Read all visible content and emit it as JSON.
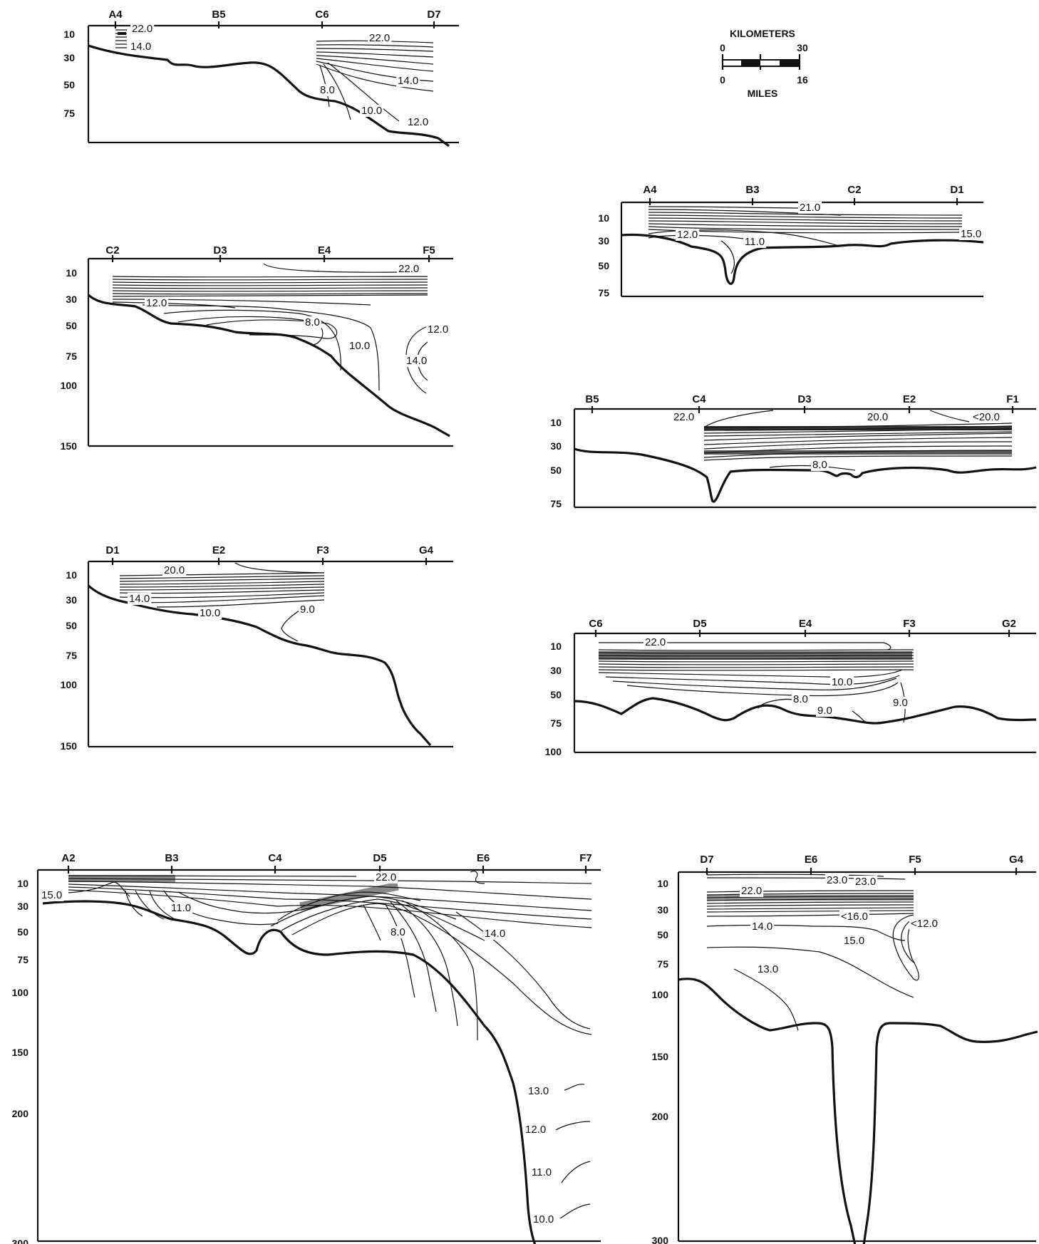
{
  "scale_bar": {
    "km_title": "KILOMETERS",
    "km_ticks": [
      "0",
      "30"
    ],
    "mile_title": "MILES",
    "mile_ticks": [
      "0",
      "16"
    ]
  },
  "transects": [
    {
      "id": "p1",
      "stations": [
        "A4",
        "B5",
        "C6",
        "D7"
      ],
      "depth_ticks": [
        "10",
        "30",
        "50",
        "75"
      ],
      "isotherm_labels": [
        "22.0",
        "14.0",
        "22.0",
        "14.0",
        "8.0",
        "10.0",
        "12.0"
      ]
    },
    {
      "id": "p2",
      "stations": [
        "A4",
        "B3",
        "C2",
        "D1"
      ],
      "depth_ticks": [
        "10",
        "30",
        "50",
        "75"
      ],
      "isotherm_labels": [
        "21.0",
        "12.0",
        "11.0",
        "15.0"
      ]
    },
    {
      "id": "p3",
      "stations": [
        "C2",
        "D3",
        "E4",
        "F5"
      ],
      "depth_ticks": [
        "10",
        "30",
        "50",
        "75",
        "100",
        "150"
      ],
      "isotherm_labels": [
        "22.0",
        "12.0",
        "8.0",
        "10.0",
        "12.0",
        "14.0"
      ]
    },
    {
      "id": "p4",
      "stations": [
        "B5",
        "C4",
        "D3",
        "E2",
        "F1"
      ],
      "depth_ticks": [
        "10",
        "30",
        "50",
        "75"
      ],
      "isotherm_labels": [
        "22.0",
        "20.0",
        "<20.0",
        "8.0"
      ]
    },
    {
      "id": "p5",
      "stations": [
        "D1",
        "E2",
        "F3",
        "G4"
      ],
      "depth_ticks": [
        "10",
        "30",
        "50",
        "75",
        "100",
        "150"
      ],
      "isotherm_labels": [
        "20.0",
        "14.0",
        "10.0",
        "9.0"
      ]
    },
    {
      "id": "p6",
      "stations": [
        "C6",
        "D5",
        "E4",
        "F3",
        "G2"
      ],
      "depth_ticks": [
        "10",
        "30",
        "50",
        "75",
        "100"
      ],
      "isotherm_labels": [
        "22.0",
        "10.0",
        "8.0",
        "9.0",
        "9.0"
      ]
    },
    {
      "id": "p7",
      "stations": [
        "A2",
        "B3",
        "C4",
        "D5",
        "E6",
        "F7"
      ],
      "depth_ticks": [
        "10",
        "30",
        "50",
        "75",
        "100",
        "150",
        "200",
        "300"
      ],
      "isotherm_labels": [
        "15.0",
        "22.0",
        "11.0",
        "8.0",
        "14.0",
        "13.0",
        "12.0",
        "11.0",
        "10.0"
      ]
    },
    {
      "id": "p8",
      "stations": [
        "D7",
        "E6",
        "F5",
        "G4"
      ],
      "depth_ticks": [
        "10",
        "30",
        "50",
        "75",
        "100",
        "150",
        "200",
        "300"
      ],
      "isotherm_labels": [
        "22.0",
        "23.0",
        "23.0",
        "<16.0",
        "<12.0",
        "14.0",
        "15.0",
        "13.0"
      ]
    }
  ]
}
